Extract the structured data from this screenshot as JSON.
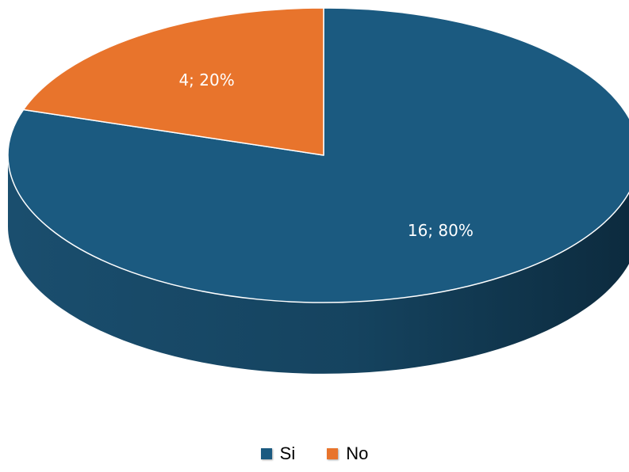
{
  "chart_data": {
    "type": "pie",
    "style": "3d",
    "categories": [
      "Si",
      "No"
    ],
    "values": [
      16,
      4
    ],
    "percentages": [
      80,
      20
    ],
    "data_labels": [
      "16; 80%",
      "4; 20%"
    ],
    "colors": [
      "#1b5a80",
      "#e8742c"
    ],
    "side_color": "#133e58",
    "title": "",
    "legend": {
      "position": "bottom",
      "entries": [
        {
          "name": "Si",
          "color": "#1b5a80"
        },
        {
          "name": "No",
          "color": "#e8742c"
        }
      ]
    }
  }
}
